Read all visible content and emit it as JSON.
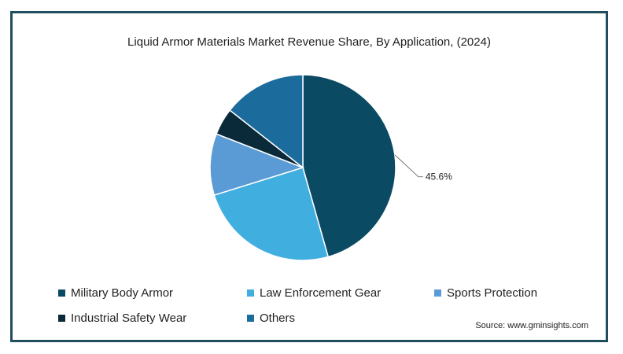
{
  "chart_data": {
    "type": "pie",
    "title": "Liquid Armor Materials Market Revenue Share, By Application, (2024)",
    "categories": [
      "Military Body Armor",
      "Law Enforcement Gear",
      "Sports Protection",
      "Industrial Safety Wear",
      "Others"
    ],
    "values": [
      45.6,
      24.6,
      10.7,
      4.7,
      14.4
    ],
    "colors": [
      "#0b4a63",
      "#41aee0",
      "#5b9bd5",
      "#0a2a3a",
      "#1b6b9c"
    ],
    "data_labels": [
      "45.6%",
      "",
      "",
      "",
      ""
    ],
    "legend_position": "bottom"
  },
  "source": "Source: www.gminsights.com"
}
